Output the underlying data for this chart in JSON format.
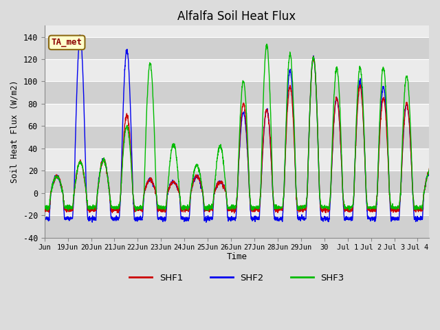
{
  "title": "Alfalfa Soil Heat Flux",
  "ylabel": "Soil Heat Flux (W/m2)",
  "xlabel": "Time",
  "ylim": [
    -40,
    150
  ],
  "yticks": [
    -40,
    -20,
    0,
    20,
    40,
    60,
    80,
    100,
    120,
    140
  ],
  "colors": {
    "SHF1": "#CC0000",
    "SHF2": "#0000EE",
    "SHF3": "#00BB00"
  },
  "annotation_text": "TA_met",
  "annotation_color": "#8B0000",
  "annotation_bg": "#FFFFCC",
  "bg_color": "#DCDCDC",
  "plot_bg": "#EBEBEB",
  "band_color": "#D0D0D0",
  "grid_color": "#FFFFFF",
  "tick_labels": [
    "Jun",
    "19Jun",
    "20Jun",
    "21Jun",
    "22Jun",
    "23Jun",
    "24Jun",
    "25Jun",
    "26Jun",
    "27Jun",
    "28Jun",
    "29Jun",
    "30",
    "Jul 1",
    "Jul 2",
    "Jul 3",
    "Jul 4"
  ],
  "day_amplitudes_shf1": [
    15,
    28,
    30,
    70,
    12,
    10,
    15,
    10,
    80,
    75,
    96,
    122,
    85,
    96,
    85,
    80
  ],
  "day_amplitudes_shf2": [
    15,
    140,
    30,
    128,
    12,
    10,
    15,
    10,
    72,
    75,
    110,
    122,
    85,
    100,
    95,
    80
  ],
  "day_amplitudes_shf3": [
    15,
    28,
    30,
    60,
    116,
    44,
    25,
    42,
    100,
    132,
    124,
    122,
    112,
    112,
    112,
    105
  ],
  "night_shf1": -15,
  "night_shf2": -23,
  "night_shf3": -13,
  "figsize": [
    6.4,
    4.8
  ],
  "dpi": 100
}
